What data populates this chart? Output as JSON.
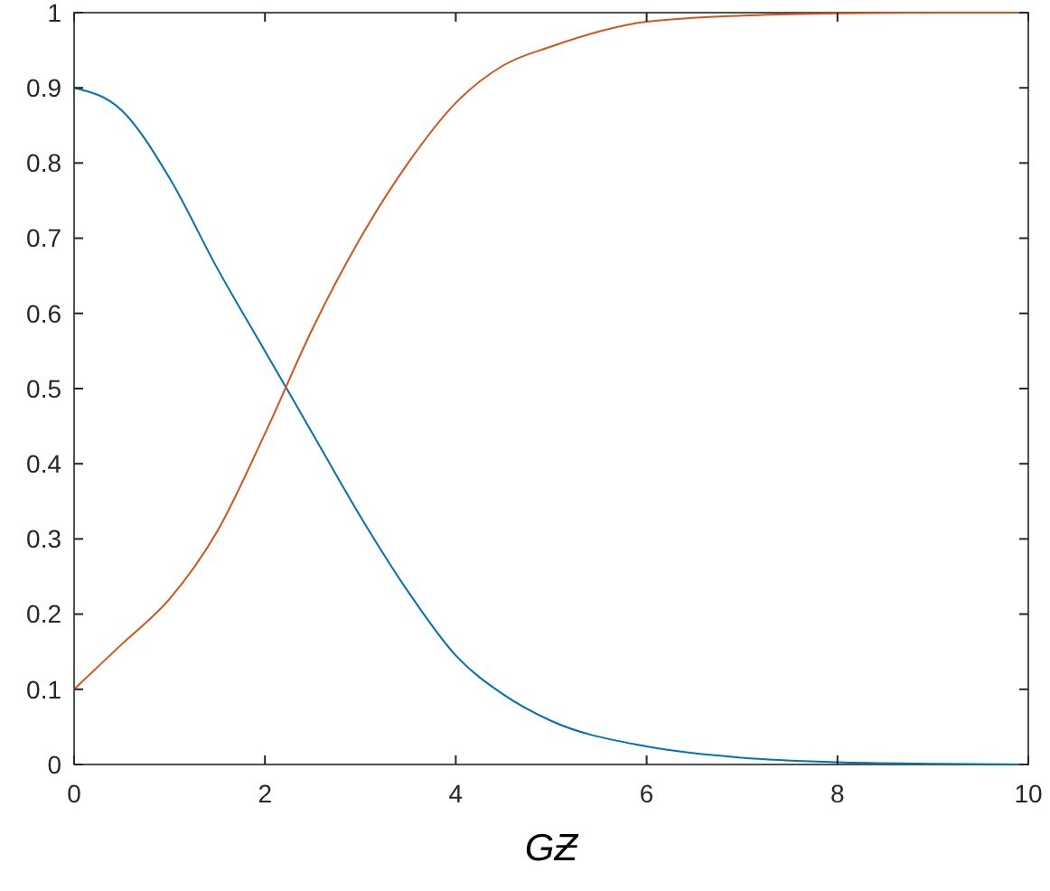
{
  "chart_data": {
    "type": "line",
    "xlabel": "GƵ",
    "xlim": [
      0,
      10
    ],
    "ylim": [
      0,
      1
    ],
    "xticks": [
      0,
      2,
      4,
      6,
      8,
      10
    ],
    "yticks": [
      0,
      0.1,
      0.2,
      0.3,
      0.4,
      0.5,
      0.6,
      0.7,
      0.8,
      0.9,
      1
    ],
    "x": [
      0,
      0.5,
      1,
      1.5,
      2,
      2.5,
      3,
      3.5,
      4,
      4.5,
      5,
      6,
      7,
      8,
      9,
      10
    ],
    "marker": "none",
    "line_style": "solid",
    "series": [
      {
        "color": "#0072bd",
        "values": [
          0.9,
          0.87,
          0.78,
          0.66,
          0.55,
          0.44,
          0.33,
          0.23,
          0.145,
          0.093,
          0.058,
          0.024,
          0.009,
          0.003,
          0.001,
          0
        ]
      },
      {
        "color": "#d95319",
        "values": [
          0.1,
          0.16,
          0.22,
          0.31,
          0.44,
          0.58,
          0.7,
          0.8,
          0.88,
          0.93,
          0.955,
          0.988,
          0.996,
          0.999,
          1,
          1
        ]
      }
    ]
  }
}
